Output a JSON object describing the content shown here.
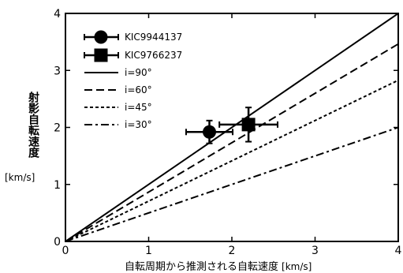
{
  "chart_data": {
    "type": "scatter",
    "xlabel": "自転周期から推測される自転速度",
    "xlabel_unit": "[km/s]",
    "ylabel": "射影自転速度",
    "ylabel_unit": "[km/s]",
    "xlim": [
      0,
      4
    ],
    "ylim": [
      0,
      4
    ],
    "x_ticks": [
      "0",
      "1",
      "2",
      "3",
      "4"
    ],
    "y_ticks": [
      "0",
      "1",
      "2",
      "3",
      "4"
    ],
    "legend_position": "top-left",
    "points": [
      {
        "name": "KIC9944137",
        "marker": "circle",
        "x": 1.73,
        "y": 1.92,
        "xerr": 0.28,
        "yerr": 0.2
      },
      {
        "name": "KIC9766237",
        "marker": "square",
        "x": 2.2,
        "y": 2.05,
        "xerr": 0.35,
        "yerr": 0.3
      }
    ],
    "lines": [
      {
        "name": "i=90°",
        "style": "solid",
        "slope": 1.0
      },
      {
        "name": "i=60°",
        "style": "dashed",
        "slope": 0.866
      },
      {
        "name": "i=45°",
        "style": "dotted",
        "slope": 0.707
      },
      {
        "name": "i=30°",
        "style": "dashdot",
        "slope": 0.5
      }
    ]
  }
}
